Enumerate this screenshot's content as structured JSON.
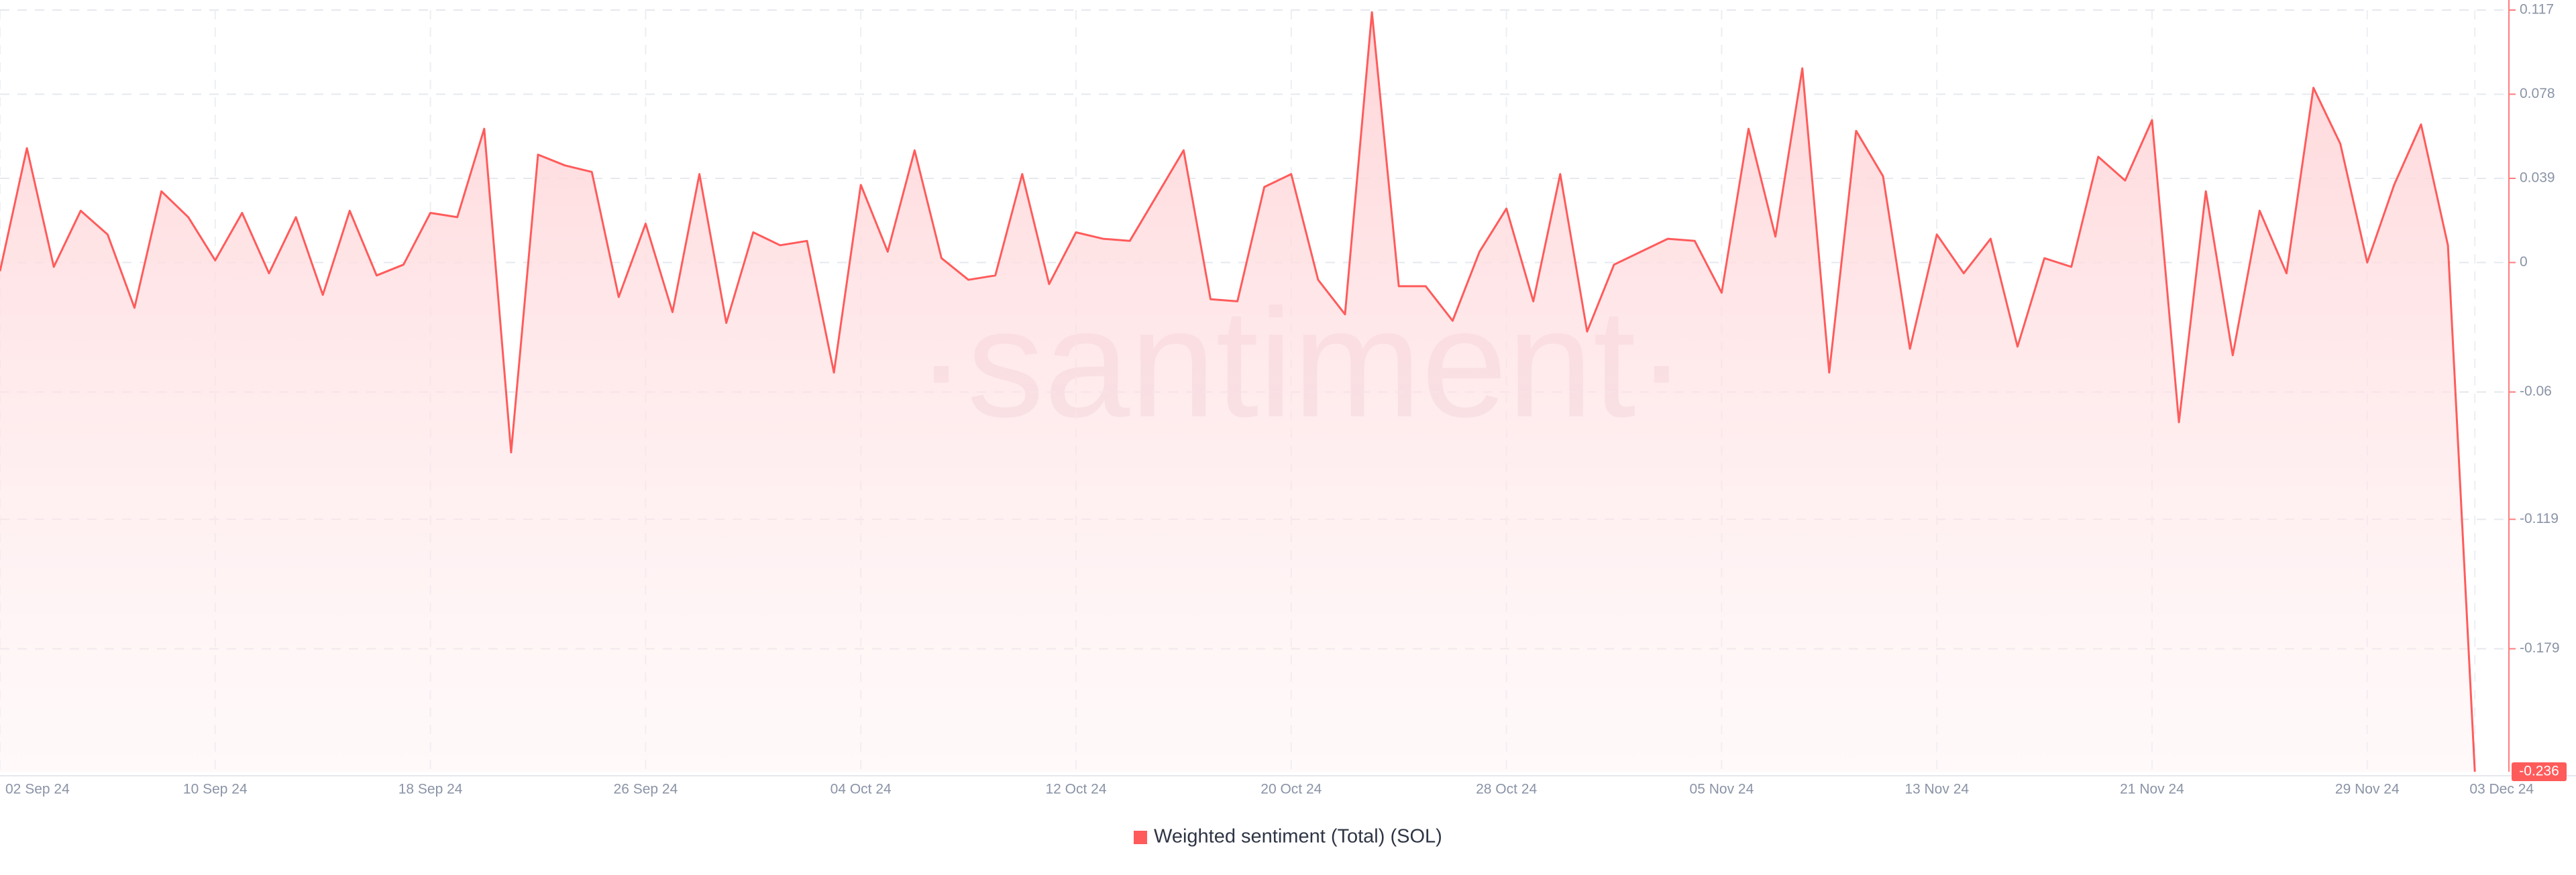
{
  "chart_data": {
    "type": "area",
    "watermark": "·santiment·",
    "categories": [
      "02 Sep 24",
      null,
      null,
      null,
      null,
      null,
      null,
      null,
      "10 Sep 24",
      null,
      null,
      null,
      null,
      null,
      null,
      null,
      "18 Sep 24",
      null,
      null,
      null,
      null,
      null,
      null,
      null,
      "26 Sep 24",
      null,
      null,
      null,
      null,
      null,
      null,
      null,
      "04 Oct 24",
      null,
      null,
      null,
      null,
      null,
      null,
      null,
      "12 Oct 24",
      null,
      null,
      null,
      null,
      null,
      null,
      null,
      "20 Oct 24",
      null,
      null,
      null,
      null,
      null,
      null,
      null,
      "28 Oct 24",
      null,
      null,
      null,
      null,
      null,
      null,
      null,
      "05 Nov 24",
      null,
      null,
      null,
      null,
      null,
      null,
      null,
      "13 Nov 24",
      null,
      null,
      null,
      null,
      null,
      null,
      null,
      "21 Nov 24",
      null,
      null,
      null,
      null,
      null,
      null,
      null,
      "29 Nov 24",
      null,
      null,
      null,
      "03 Dec 24"
    ],
    "series": [
      {
        "name": "Weighted sentiment (Total) (SOL)",
        "color": "#ff5b5b",
        "values": [
          -0.004,
          0.053,
          -0.002,
          0.024,
          0.013,
          -0.021,
          0.033,
          0.021,
          0.001,
          0.023,
          -0.005,
          0.021,
          -0.015,
          0.024,
          -0.006,
          -0.001,
          0.023,
          0.021,
          0.062,
          -0.088,
          0.05,
          0.045,
          0.042,
          -0.016,
          0.018,
          -0.023,
          0.041,
          -0.028,
          0.014,
          0.008,
          0.01,
          -0.051,
          0.036,
          0.005,
          0.052,
          0.002,
          -0.008,
          -0.006,
          0.041,
          -0.01,
          0.014,
          0.011,
          0.01,
          0.031,
          0.052,
          -0.017,
          -0.018,
          0.035,
          0.041,
          -0.008,
          -0.024,
          0.116,
          -0.011,
          -0.011,
          -0.027,
          0.005,
          0.025,
          -0.018,
          0.041,
          -0.032,
          -0.001,
          0.005,
          0.011,
          0.01,
          -0.014,
          0.062,
          0.012,
          0.09,
          -0.051,
          0.061,
          0.04,
          -0.04,
          0.013,
          -0.005,
          0.011,
          -0.039,
          0.002,
          -0.002,
          0.049,
          0.038,
          0.066,
          -0.074,
          0.033,
          -0.043,
          0.024,
          -0.005,
          0.081,
          0.055,
          0.0,
          0.036,
          0.064,
          0.008,
          -0.236
        ]
      }
    ],
    "ylim": [
      -0.236,
      0.117
    ],
    "yticks": [
      0.117,
      0.078,
      0.039,
      0,
      -0.06,
      -0.119,
      -0.179
    ],
    "grid": true,
    "legend": "bottom"
  }
}
